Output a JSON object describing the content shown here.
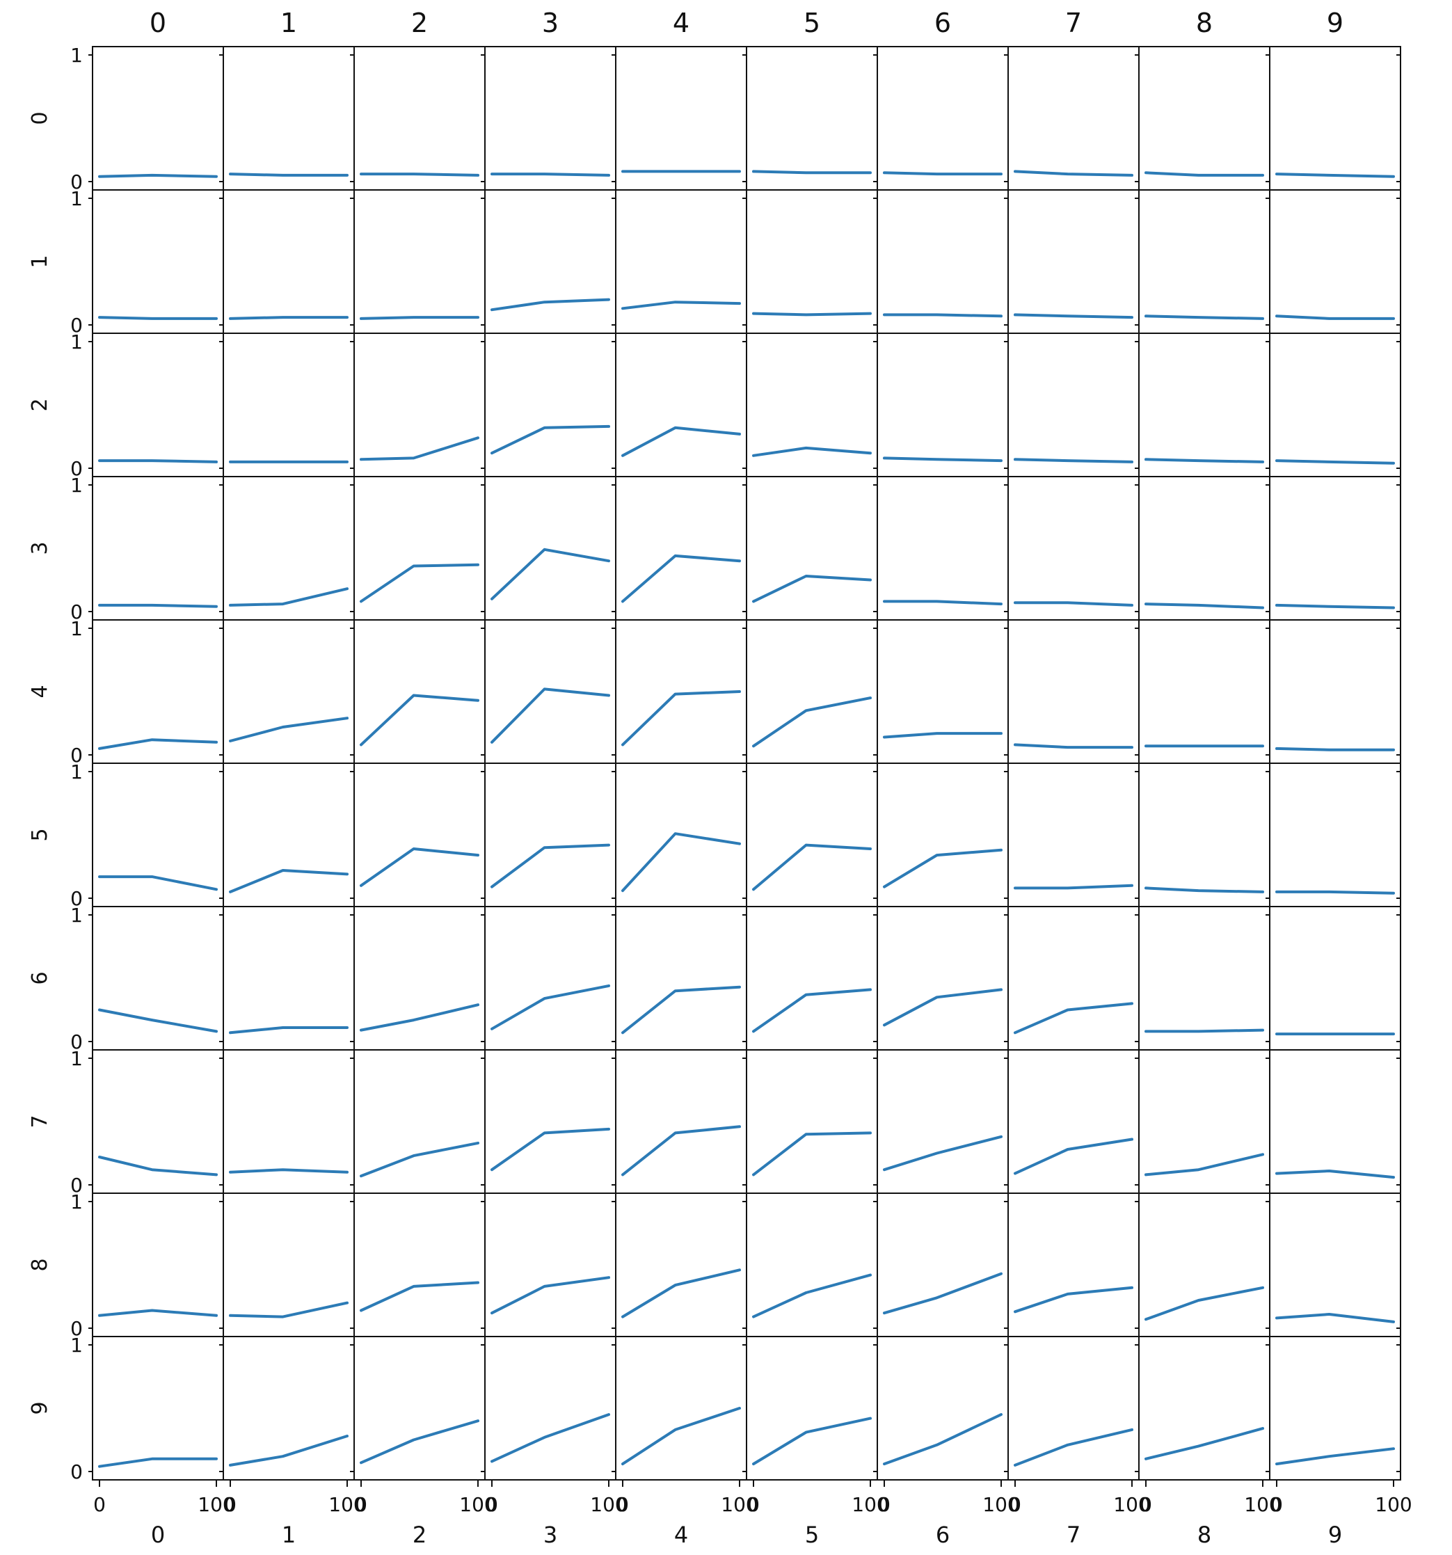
{
  "chart_data": {
    "type": "line",
    "layout": "grid",
    "rows": 10,
    "cols": 10,
    "col_headers": [
      "0",
      "1",
      "2",
      "3",
      "4",
      "5",
      "6",
      "7",
      "8",
      "9"
    ],
    "row_headers": [
      "0",
      "1",
      "2",
      "3",
      "4",
      "5",
      "6",
      "7",
      "8",
      "9"
    ],
    "col_footers": [
      "0",
      "1",
      "2",
      "3",
      "4",
      "5",
      "6",
      "7",
      "8",
      "9"
    ],
    "xlim": [
      0,
      100
    ],
    "ylim": [
      0,
      1
    ],
    "x_ticks": [
      "0",
      "100"
    ],
    "y_ticks": [
      "0",
      "1"
    ],
    "x_points": [
      0,
      45,
      100
    ],
    "series_color": "#2c7bb6",
    "panels": [
      [
        [
          0.04,
          0.05,
          0.04
        ],
        [
          0.06,
          0.05,
          0.05
        ],
        [
          0.06,
          0.06,
          0.05
        ],
        [
          0.06,
          0.06,
          0.05
        ],
        [
          0.08,
          0.08,
          0.08
        ],
        [
          0.08,
          0.07,
          0.07
        ],
        [
          0.07,
          0.06,
          0.06
        ],
        [
          0.08,
          0.06,
          0.05
        ],
        [
          0.07,
          0.05,
          0.05
        ],
        [
          0.06,
          0.05,
          0.04
        ]
      ],
      [
        [
          0.06,
          0.05,
          0.05
        ],
        [
          0.05,
          0.06,
          0.06
        ],
        [
          0.05,
          0.06,
          0.06
        ],
        [
          0.12,
          0.18,
          0.2
        ],
        [
          0.13,
          0.18,
          0.17
        ],
        [
          0.09,
          0.08,
          0.09
        ],
        [
          0.08,
          0.08,
          0.07
        ],
        [
          0.08,
          0.07,
          0.06
        ],
        [
          0.07,
          0.06,
          0.05
        ],
        [
          0.07,
          0.05,
          0.05
        ]
      ],
      [
        [
          0.06,
          0.06,
          0.05
        ],
        [
          0.05,
          0.05,
          0.05
        ],
        [
          0.07,
          0.08,
          0.24
        ],
        [
          0.12,
          0.32,
          0.33
        ],
        [
          0.1,
          0.32,
          0.27
        ],
        [
          0.1,
          0.16,
          0.12
        ],
        [
          0.08,
          0.07,
          0.06
        ],
        [
          0.07,
          0.06,
          0.05
        ],
        [
          0.07,
          0.06,
          0.05
        ],
        [
          0.06,
          0.05,
          0.04
        ]
      ],
      [
        [
          0.05,
          0.05,
          0.04
        ],
        [
          0.05,
          0.06,
          0.18
        ],
        [
          0.08,
          0.36,
          0.37
        ],
        [
          0.1,
          0.49,
          0.4
        ],
        [
          0.08,
          0.44,
          0.4
        ],
        [
          0.08,
          0.28,
          0.25
        ],
        [
          0.08,
          0.08,
          0.06
        ],
        [
          0.07,
          0.07,
          0.05
        ],
        [
          0.06,
          0.05,
          0.03
        ],
        [
          0.05,
          0.04,
          0.03
        ]
      ],
      [
        [
          0.05,
          0.12,
          0.1
        ],
        [
          0.11,
          0.22,
          0.29
        ],
        [
          0.08,
          0.47,
          0.43
        ],
        [
          0.1,
          0.52,
          0.47
        ],
        [
          0.08,
          0.48,
          0.5
        ],
        [
          0.07,
          0.35,
          0.45
        ],
        [
          0.14,
          0.17,
          0.17
        ],
        [
          0.08,
          0.06,
          0.06
        ],
        [
          0.07,
          0.07,
          0.07
        ],
        [
          0.05,
          0.04,
          0.04
        ]
      ],
      [
        [
          0.17,
          0.17,
          0.07
        ],
        [
          0.05,
          0.22,
          0.19
        ],
        [
          0.1,
          0.39,
          0.34
        ],
        [
          0.09,
          0.4,
          0.42
        ],
        [
          0.06,
          0.51,
          0.43
        ],
        [
          0.07,
          0.42,
          0.39
        ],
        [
          0.09,
          0.34,
          0.38
        ],
        [
          0.08,
          0.08,
          0.1
        ],
        [
          0.08,
          0.06,
          0.05
        ],
        [
          0.05,
          0.05,
          0.04
        ]
      ],
      [
        [
          0.25,
          0.17,
          0.08
        ],
        [
          0.07,
          0.11,
          0.11
        ],
        [
          0.09,
          0.17,
          0.29
        ],
        [
          0.1,
          0.34,
          0.44
        ],
        [
          0.07,
          0.4,
          0.43
        ],
        [
          0.08,
          0.37,
          0.41
        ],
        [
          0.13,
          0.35,
          0.41
        ],
        [
          0.07,
          0.25,
          0.3
        ],
        [
          0.08,
          0.08,
          0.09
        ],
        [
          0.06,
          0.06,
          0.06
        ]
      ],
      [
        [
          0.22,
          0.12,
          0.08
        ],
        [
          0.1,
          0.12,
          0.1
        ],
        [
          0.07,
          0.23,
          0.33
        ],
        [
          0.12,
          0.41,
          0.44
        ],
        [
          0.08,
          0.41,
          0.46
        ],
        [
          0.08,
          0.4,
          0.41
        ],
        [
          0.12,
          0.25,
          0.38
        ],
        [
          0.09,
          0.28,
          0.36
        ],
        [
          0.08,
          0.12,
          0.24
        ],
        [
          0.09,
          0.11,
          0.06
        ]
      ],
      [
        [
          0.1,
          0.14,
          0.1
        ],
        [
          0.1,
          0.09,
          0.2
        ],
        [
          0.14,
          0.33,
          0.36
        ],
        [
          0.12,
          0.33,
          0.4
        ],
        [
          0.09,
          0.34,
          0.46
        ],
        [
          0.09,
          0.28,
          0.42
        ],
        [
          0.12,
          0.24,
          0.43
        ],
        [
          0.13,
          0.27,
          0.32
        ],
        [
          0.07,
          0.22,
          0.32
        ],
        [
          0.08,
          0.11,
          0.05
        ]
      ],
      [
        [
          0.04,
          0.1,
          0.1
        ],
        [
          0.05,
          0.12,
          0.28
        ],
        [
          0.07,
          0.25,
          0.4
        ],
        [
          0.08,
          0.27,
          0.45
        ],
        [
          0.06,
          0.33,
          0.5
        ],
        [
          0.06,
          0.31,
          0.42
        ],
        [
          0.06,
          0.21,
          0.45
        ],
        [
          0.05,
          0.21,
          0.33
        ],
        [
          0.1,
          0.2,
          0.34
        ],
        [
          0.06,
          0.12,
          0.18
        ]
      ]
    ]
  }
}
